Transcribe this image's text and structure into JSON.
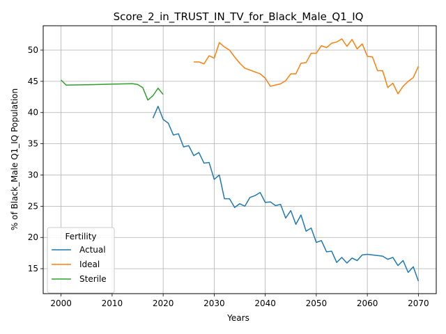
{
  "chart_data": {
    "type": "line",
    "title": "Score_2_in_TRUST_IN_TV_for_Black_Male_Q1_IQ",
    "xlabel": "Years",
    "ylabel": "% of Black_Male Q1_IQ Population",
    "xlim": [
      1996.5,
      2073.5
    ],
    "ylim": [
      11.0,
      53.9
    ],
    "xticks": [
      2000,
      2010,
      2020,
      2030,
      2040,
      2050,
      2060,
      2070
    ],
    "yticks": [
      15,
      20,
      25,
      30,
      35,
      40,
      45,
      50
    ],
    "grid": true,
    "legend": {
      "title": "Fertility",
      "position": "lower-left"
    },
    "series": [
      {
        "name": "Actual",
        "color": "#1f77b4",
        "points": [
          [
            2018,
            39.1
          ],
          [
            2019,
            41.0
          ],
          [
            2020,
            38.9
          ],
          [
            2021,
            38.3
          ],
          [
            2022,
            36.4
          ],
          [
            2023,
            36.6
          ],
          [
            2024,
            34.5
          ],
          [
            2025,
            34.7
          ],
          [
            2026,
            33.1
          ],
          [
            2027,
            33.6
          ],
          [
            2028,
            31.9
          ],
          [
            2029,
            32.0
          ],
          [
            2030,
            29.3
          ],
          [
            2031,
            30.0
          ],
          [
            2032,
            26.2
          ],
          [
            2033,
            26.2
          ],
          [
            2034,
            24.8
          ],
          [
            2035,
            25.4
          ],
          [
            2036,
            25.0
          ],
          [
            2037,
            26.4
          ],
          [
            2038,
            26.7
          ],
          [
            2039,
            27.2
          ],
          [
            2040,
            25.6
          ],
          [
            2041,
            25.7
          ],
          [
            2042,
            25.1
          ],
          [
            2043,
            25.3
          ],
          [
            2044,
            23.1
          ],
          [
            2045,
            24.3
          ],
          [
            2046,
            22.1
          ],
          [
            2047,
            23.6
          ],
          [
            2048,
            21.0
          ],
          [
            2049,
            21.5
          ],
          [
            2050,
            19.2
          ],
          [
            2051,
            19.5
          ],
          [
            2052,
            17.7
          ],
          [
            2053,
            17.8
          ],
          [
            2054,
            16.0
          ],
          [
            2055,
            16.8
          ],
          [
            2056,
            15.9
          ],
          [
            2057,
            16.7
          ],
          [
            2058,
            16.3
          ],
          [
            2059,
            17.2
          ],
          [
            2060,
            17.3
          ],
          [
            2061,
            17.2
          ],
          [
            2062,
            17.1
          ],
          [
            2063,
            17.0
          ],
          [
            2064,
            16.5
          ],
          [
            2065,
            16.8
          ],
          [
            2066,
            15.5
          ],
          [
            2067,
            16.3
          ],
          [
            2068,
            14.4
          ],
          [
            2069,
            15.3
          ],
          [
            2070,
            13.0
          ]
        ]
      },
      {
        "name": "Ideal",
        "color": "#ff7f0e",
        "points": [
          [
            2026,
            48.1
          ],
          [
            2027,
            48.1
          ],
          [
            2028,
            47.8
          ],
          [
            2029,
            49.1
          ],
          [
            2030,
            48.7
          ],
          [
            2031,
            51.2
          ],
          [
            2032,
            50.5
          ],
          [
            2033,
            50.0
          ],
          [
            2034,
            48.9
          ],
          [
            2035,
            47.9
          ],
          [
            2036,
            47.1
          ],
          [
            2037,
            46.8
          ],
          [
            2038,
            46.5
          ],
          [
            2039,
            46.2
          ],
          [
            2040,
            45.5
          ],
          [
            2041,
            44.2
          ],
          [
            2042,
            44.4
          ],
          [
            2043,
            44.6
          ],
          [
            2044,
            45.1
          ],
          [
            2045,
            46.2
          ],
          [
            2046,
            46.2
          ],
          [
            2047,
            47.9
          ],
          [
            2048,
            48.0
          ],
          [
            2049,
            49.5
          ],
          [
            2050,
            49.5
          ],
          [
            2051,
            50.7
          ],
          [
            2052,
            50.4
          ],
          [
            2053,
            51.1
          ],
          [
            2054,
            51.3
          ],
          [
            2055,
            51.8
          ],
          [
            2056,
            50.6
          ],
          [
            2057,
            51.7
          ],
          [
            2058,
            50.2
          ],
          [
            2059,
            51.0
          ],
          [
            2060,
            49.0
          ],
          [
            2061,
            48.9
          ],
          [
            2062,
            46.7
          ],
          [
            2063,
            46.7
          ],
          [
            2064,
            44.0
          ],
          [
            2065,
            44.7
          ],
          [
            2066,
            43.0
          ],
          [
            2067,
            44.2
          ],
          [
            2068,
            45.0
          ],
          [
            2069,
            45.6
          ],
          [
            2070,
            47.4
          ]
        ]
      },
      {
        "name": "Sterile",
        "color": "#2ca02c",
        "points": [
          [
            2000,
            45.2
          ],
          [
            2001,
            44.4
          ],
          [
            2005,
            44.45
          ],
          [
            2010,
            44.55
          ],
          [
            2014,
            44.62
          ],
          [
            2015,
            44.5
          ],
          [
            2016,
            44.0
          ],
          [
            2017,
            42.0
          ],
          [
            2018,
            42.7
          ],
          [
            2019,
            43.9
          ],
          [
            2020,
            42.9
          ]
        ]
      }
    ]
  }
}
